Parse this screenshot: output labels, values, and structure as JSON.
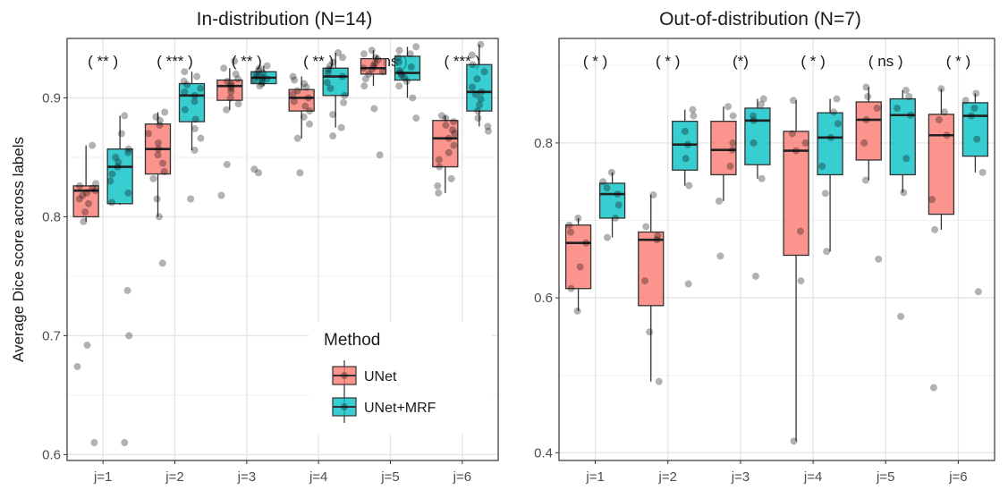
{
  "chart_data": [
    {
      "type": "box",
      "title": "In-distribution (N=14)",
      "ylabel": "Average Dice score across labels",
      "xlabel": "",
      "categories": [
        "j=1",
        "j=2",
        "j=3",
        "j=4",
        "j=5",
        "j=6"
      ],
      "ylim": [
        0.595,
        0.95
      ],
      "yticks": [
        0.6,
        0.7,
        0.8,
        0.9
      ],
      "ytick_labels": [
        "0.6",
        "0.7",
        "0.8",
        "0.9"
      ],
      "grid": true,
      "significance": [
        "( ** )",
        "( *** )",
        "( ** )",
        "( ** )",
        "( ns )",
        "( *** )"
      ],
      "series": [
        {
          "name": "UNet",
          "color": "#F8766D",
          "boxes": [
            {
              "q1": 0.8,
              "median": 0.822,
              "q3": 0.826,
              "whisker_low": 0.796,
              "whisker_high": 0.86,
              "points": [
                0.61,
                0.674,
                0.692,
                0.796,
                0.804,
                0.811,
                0.815,
                0.818,
                0.82,
                0.822,
                0.824,
                0.826,
                0.828,
                0.86
              ]
            },
            {
              "q1": 0.836,
              "median": 0.857,
              "q3": 0.878,
              "whisker_low": 0.8,
              "whisker_high": 0.888,
              "points": [
                0.761,
                0.8,
                0.815,
                0.832,
                0.838,
                0.845,
                0.852,
                0.857,
                0.862,
                0.87,
                0.877,
                0.881,
                0.884,
                0.888
              ]
            },
            {
              "q1": 0.898,
              "median": 0.91,
              "q3": 0.915,
              "whisker_low": 0.89,
              "whisker_high": 0.925,
              "points": [
                0.818,
                0.844,
                0.89,
                0.895,
                0.9,
                0.905,
                0.908,
                0.91,
                0.912,
                0.914,
                0.916,
                0.92,
                0.925,
                0.931
              ]
            },
            {
              "q1": 0.889,
              "median": 0.9,
              "q3": 0.907,
              "whisker_low": 0.866,
              "whisker_high": 0.918,
              "points": [
                0.837,
                0.866,
                0.878,
                0.884,
                0.889,
                0.893,
                0.897,
                0.9,
                0.903,
                0.906,
                0.909,
                0.912,
                0.915,
                0.918
              ]
            },
            {
              "q1": 0.92,
              "median": 0.925,
              "q3": 0.933,
              "whisker_low": 0.91,
              "whisker_high": 0.94,
              "points": [
                0.852,
                0.891,
                0.91,
                0.916,
                0.92,
                0.922,
                0.924,
                0.925,
                0.927,
                0.929,
                0.932,
                0.934,
                0.937,
                0.94
              ]
            },
            {
              "q1": 0.842,
              "median": 0.866,
              "q3": 0.881,
              "whisker_low": 0.82,
              "whisker_high": 0.885,
              "points": [
                0.82,
                0.826,
                0.832,
                0.842,
                0.848,
                0.854,
                0.86,
                0.866,
                0.87,
                0.873,
                0.877,
                0.88,
                0.883,
                0.885
              ]
            }
          ]
        },
        {
          "name": "UNet+MRF",
          "color": "#00BFC4",
          "boxes": [
            {
              "q1": 0.811,
              "median": 0.842,
              "q3": 0.857,
              "whisker_low": 0.81,
              "whisker_high": 0.885,
              "points": [
                0.61,
                0.7,
                0.738,
                0.812,
                0.82,
                0.83,
                0.836,
                0.842,
                0.846,
                0.85,
                0.854,
                0.857,
                0.87,
                0.885
              ]
            },
            {
              "q1": 0.88,
              "median": 0.902,
              "q3": 0.912,
              "whisker_low": 0.856,
              "whisker_high": 0.922,
              "points": [
                0.815,
                0.856,
                0.866,
                0.874,
                0.882,
                0.89,
                0.897,
                0.902,
                0.905,
                0.908,
                0.911,
                0.914,
                0.918,
                0.922
              ]
            },
            {
              "q1": 0.912,
              "median": 0.917,
              "q3": 0.922,
              "whisker_low": 0.91,
              "whisker_high": 0.927,
              "points": [
                0.837,
                0.84,
                0.91,
                0.912,
                0.914,
                0.915,
                0.916,
                0.917,
                0.918,
                0.92,
                0.921,
                0.923,
                0.925,
                0.927
              ]
            },
            {
              "q1": 0.902,
              "median": 0.918,
              "q3": 0.925,
              "whisker_low": 0.875,
              "whisker_high": 0.938,
              "points": [
                0.868,
                0.875,
                0.886,
                0.896,
                0.902,
                0.908,
                0.913,
                0.918,
                0.921,
                0.924,
                0.927,
                0.93,
                0.934,
                0.938
              ]
            },
            {
              "q1": 0.915,
              "median": 0.921,
              "q3": 0.935,
              "whisker_low": 0.9,
              "whisker_high": 0.943,
              "points": [
                0.883,
                0.9,
                0.91,
                0.914,
                0.917,
                0.919,
                0.921,
                0.923,
                0.926,
                0.93,
                0.934,
                0.937,
                0.94,
                0.943
              ]
            },
            {
              "q1": 0.889,
              "median": 0.905,
              "q3": 0.928,
              "whisker_low": 0.876,
              "whisker_high": 0.945,
              "points": [
                0.872,
                0.876,
                0.883,
                0.889,
                0.894,
                0.899,
                0.903,
                0.905,
                0.909,
                0.916,
                0.922,
                0.928,
                0.936,
                0.945
              ]
            }
          ]
        }
      ]
    },
    {
      "type": "box",
      "title": "Out-of-distribution (N=7)",
      "ylabel": "",
      "xlabel": "",
      "categories": [
        "j=1",
        "j=2",
        "j=3",
        "j=4",
        "j=5",
        "j=6"
      ],
      "ylim": [
        0.39,
        0.935
      ],
      "yticks": [
        0.4,
        0.6,
        0.8
      ],
      "ytick_labels": [
        "0.4",
        "0.6",
        "0.8"
      ],
      "grid": true,
      "significance": [
        "( * )",
        "( * )",
        "(*)",
        "( * )",
        "( ns )",
        "( * )"
      ],
      "series": [
        {
          "name": "UNet",
          "color": "#F8766D",
          "boxes": [
            {
              "q1": 0.612,
              "median": 0.671,
              "q3": 0.694,
              "whisker_low": 0.583,
              "whisker_high": 0.703,
              "points": [
                0.583,
                0.612,
                0.64,
                0.671,
                0.685,
                0.694,
                0.703
              ]
            },
            {
              "q1": 0.59,
              "median": 0.675,
              "q3": 0.685,
              "whisker_low": 0.492,
              "whisker_high": 0.733,
              "points": [
                0.492,
                0.556,
                0.622,
                0.675,
                0.68,
                0.692,
                0.733
              ]
            },
            {
              "q1": 0.759,
              "median": 0.791,
              "q3": 0.828,
              "whisker_low": 0.725,
              "whisker_high": 0.847,
              "points": [
                0.654,
                0.725,
                0.77,
                0.791,
                0.8,
                0.835,
                0.847
              ]
            },
            {
              "q1": 0.655,
              "median": 0.79,
              "q3": 0.815,
              "whisker_low": 0.415,
              "whisker_high": 0.855,
              "points": [
                0.415,
                0.622,
                0.686,
                0.79,
                0.8,
                0.812,
                0.855
              ]
            },
            {
              "q1": 0.778,
              "median": 0.83,
              "q3": 0.853,
              "whisker_low": 0.752,
              "whisker_high": 0.872,
              "points": [
                0.65,
                0.752,
                0.8,
                0.83,
                0.845,
                0.86,
                0.872
              ]
            },
            {
              "q1": 0.708,
              "median": 0.81,
              "q3": 0.837,
              "whisker_low": 0.688,
              "whisker_high": 0.87,
              "points": [
                0.484,
                0.688,
                0.727,
                0.81,
                0.83,
                0.84,
                0.87
              ]
            }
          ]
        },
        {
          "name": "UNet+MRF",
          "color": "#00BFC4",
          "boxes": [
            {
              "q1": 0.703,
              "median": 0.734,
              "q3": 0.748,
              "whisker_low": 0.678,
              "whisker_high": 0.762,
              "points": [
                0.678,
                0.703,
                0.72,
                0.734,
                0.742,
                0.75,
                0.762
              ]
            },
            {
              "q1": 0.765,
              "median": 0.798,
              "q3": 0.828,
              "whisker_low": 0.745,
              "whisker_high": 0.843,
              "points": [
                0.618,
                0.745,
                0.78,
                0.798,
                0.815,
                0.835,
                0.843
              ]
            },
            {
              "q1": 0.772,
              "median": 0.829,
              "q3": 0.845,
              "whisker_low": 0.754,
              "whisker_high": 0.857,
              "points": [
                0.628,
                0.754,
                0.8,
                0.829,
                0.835,
                0.85,
                0.857
              ]
            },
            {
              "q1": 0.759,
              "median": 0.807,
              "q3": 0.839,
              "whisker_low": 0.66,
              "whisker_high": 0.857,
              "points": [
                0.66,
                0.735,
                0.77,
                0.807,
                0.825,
                0.84,
                0.857
              ]
            },
            {
              "q1": 0.759,
              "median": 0.836,
              "q3": 0.857,
              "whisker_low": 0.736,
              "whisker_high": 0.868,
              "points": [
                0.576,
                0.736,
                0.78,
                0.836,
                0.845,
                0.86,
                0.868
              ]
            },
            {
              "q1": 0.783,
              "median": 0.835,
              "q3": 0.852,
              "whisker_low": 0.762,
              "whisker_high": 0.864,
              "points": [
                0.608,
                0.762,
                0.805,
                0.835,
                0.845,
                0.855,
                0.864
              ]
            }
          ]
        }
      ]
    }
  ],
  "legend": {
    "title": "Method",
    "position": "inside-bottom-right",
    "entries": [
      "UNet",
      "UNet+MRF"
    ]
  }
}
